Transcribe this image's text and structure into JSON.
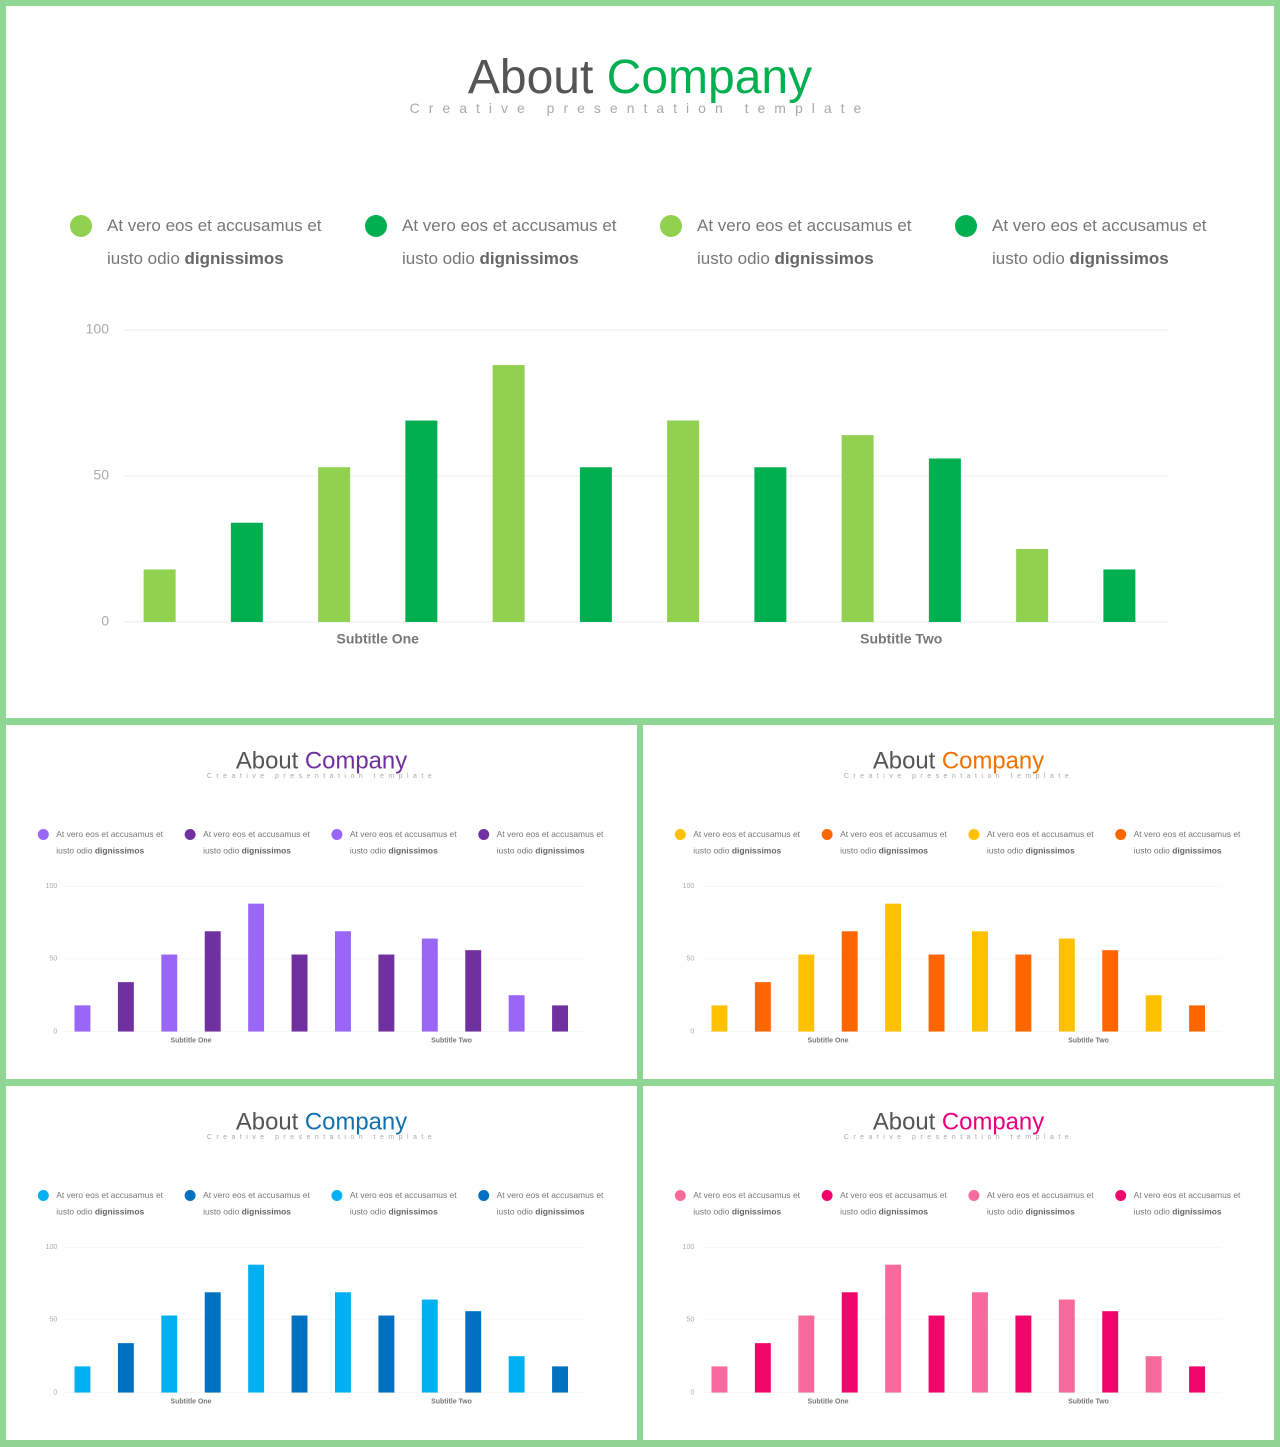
{
  "chart_data": [
    {
      "type": "bar",
      "title": "About",
      "title_accent": "Company",
      "accent_color": "#00b050",
      "subtitle": "Creative presentation template",
      "legend": [
        {
          "text": "At vero eos et accusamus et iusto odio",
          "bold": "dignissimos",
          "color": "#92d050"
        },
        {
          "text": "At vero eos et accusamus et iusto odio",
          "bold": "dignissimos",
          "color": "#00b050"
        },
        {
          "text": "At vero eos et accusamus et iusto odio",
          "bold": "dignissimos",
          "color": "#92d050"
        },
        {
          "text": "At vero eos et accusamus et iusto odio",
          "bold": "dignissimos",
          "color": "#00b050"
        }
      ],
      "categories": [
        "Subtitle One",
        "Subtitle Two"
      ],
      "series": [
        {
          "color": "#92d050",
          "values": [
            18,
            69
          ]
        },
        {
          "color": "#00b050",
          "values": [
            34,
            53
          ]
        },
        {
          "color": "#92d050",
          "values": [
            53,
            64
          ]
        },
        {
          "color": "#00b050",
          "values": [
            69,
            56
          ]
        },
        {
          "color": "#92d050",
          "values": [
            88,
            25
          ]
        },
        {
          "color": "#00b050",
          "values": [
            53,
            18
          ]
        }
      ],
      "ylim": [
        0,
        100
      ],
      "yticks": [
        0,
        50,
        100
      ],
      "grid": true
    },
    {
      "type": "bar",
      "title": "About",
      "title_accent": "Company",
      "accent_color": "#7030a0",
      "subtitle": "Creative presentation template",
      "legend": [
        {
          "text": "At vero eos et accusamus et iusto odio",
          "bold": "dignissimos",
          "color": "#9966f5"
        },
        {
          "text": "At vero eos et accusamus et iusto odio",
          "bold": "dignissimos",
          "color": "#7030a0"
        },
        {
          "text": "At vero eos et accusamus et iusto odio",
          "bold": "dignissimos",
          "color": "#9966f5"
        },
        {
          "text": "At vero eos et accusamus et iusto odio",
          "bold": "dignissimos",
          "color": "#7030a0"
        }
      ],
      "categories": [
        "Subtitle One",
        "Subtitle Two"
      ],
      "series": [
        {
          "color": "#9966f5",
          "values": [
            18,
            69
          ]
        },
        {
          "color": "#7030a0",
          "values": [
            34,
            53
          ]
        },
        {
          "color": "#9966f5",
          "values": [
            53,
            64
          ]
        },
        {
          "color": "#7030a0",
          "values": [
            69,
            56
          ]
        },
        {
          "color": "#9966f5",
          "values": [
            88,
            25
          ]
        },
        {
          "color": "#7030a0",
          "values": [
            53,
            18
          ]
        }
      ],
      "ylim": [
        0,
        100
      ],
      "yticks": [
        0,
        50,
        100
      ],
      "grid": true
    },
    {
      "type": "bar",
      "title": "About",
      "title_accent": "Company",
      "accent_color": "#f07000",
      "subtitle": "Creative presentation template",
      "legend": [
        {
          "text": "At vero eos et accusamus et iusto odio",
          "bold": "dignissimos",
          "color": "#ffc000"
        },
        {
          "text": "At vero eos et accusamus et iusto odio",
          "bold": "dignissimos",
          "color": "#ff6600"
        },
        {
          "text": "At vero eos et accusamus et iusto odio",
          "bold": "dignissimos",
          "color": "#ffc000"
        },
        {
          "text": "At vero eos et accusamus et iusto odio",
          "bold": "dignissimos",
          "color": "#ff6600"
        }
      ],
      "categories": [
        "Subtitle One",
        "Subtitle Two"
      ],
      "series": [
        {
          "color": "#ffc000",
          "values": [
            18,
            69
          ]
        },
        {
          "color": "#ff6600",
          "values": [
            34,
            53
          ]
        },
        {
          "color": "#ffc000",
          "values": [
            53,
            64
          ]
        },
        {
          "color": "#ff6600",
          "values": [
            69,
            56
          ]
        },
        {
          "color": "#ffc000",
          "values": [
            88,
            25
          ]
        },
        {
          "color": "#ff6600",
          "values": [
            53,
            18
          ]
        }
      ],
      "ylim": [
        0,
        100
      ],
      "yticks": [
        0,
        50,
        100
      ],
      "grid": true
    },
    {
      "type": "bar",
      "title": "About",
      "title_accent": "Company",
      "accent_color": "#1070b0",
      "subtitle": "Creative presentation template",
      "legend": [
        {
          "text": "At vero eos et accusamus et iusto odio",
          "bold": "dignissimos",
          "color": "#00b0f0"
        },
        {
          "text": "At vero eos et accusamus et iusto odio",
          "bold": "dignissimos",
          "color": "#0070c0"
        },
        {
          "text": "At vero eos et accusamus et iusto odio",
          "bold": "dignissimos",
          "color": "#00b0f0"
        },
        {
          "text": "At vero eos et accusamus et iusto odio",
          "bold": "dignissimos",
          "color": "#0070c0"
        }
      ],
      "categories": [
        "Subtitle One",
        "Subtitle Two"
      ],
      "series": [
        {
          "color": "#00b0f0",
          "values": [
            18,
            69
          ]
        },
        {
          "color": "#0070c0",
          "values": [
            34,
            53
          ]
        },
        {
          "color": "#00b0f0",
          "values": [
            53,
            64
          ]
        },
        {
          "color": "#0070c0",
          "values": [
            69,
            56
          ]
        },
        {
          "color": "#00b0f0",
          "values": [
            88,
            25
          ]
        },
        {
          "color": "#0070c0",
          "values": [
            53,
            18
          ]
        }
      ],
      "ylim": [
        0,
        100
      ],
      "yticks": [
        0,
        50,
        100
      ],
      "grid": true
    },
    {
      "type": "bar",
      "title": "About",
      "title_accent": "Company",
      "accent_color": "#e6007e",
      "subtitle": "Creative presentation template",
      "legend": [
        {
          "text": "At vero eos et accusamus et iusto odio",
          "bold": "dignissimos",
          "color": "#f76b9c"
        },
        {
          "text": "At vero eos et accusamus et iusto odio",
          "bold": "dignissimos",
          "color": "#f0066b"
        },
        {
          "text": "At vero eos et accusamus et iusto odio",
          "bold": "dignissimos",
          "color": "#f76b9c"
        },
        {
          "text": "At vero eos et accusamus et iusto odio",
          "bold": "dignissimos",
          "color": "#f0066b"
        }
      ],
      "categories": [
        "Subtitle One",
        "Subtitle Two"
      ],
      "series": [
        {
          "color": "#f76b9c",
          "values": [
            18,
            69
          ]
        },
        {
          "color": "#f0066b",
          "values": [
            34,
            53
          ]
        },
        {
          "color": "#f76b9c",
          "values": [
            53,
            64
          ]
        },
        {
          "color": "#f0066b",
          "values": [
            69,
            56
          ]
        },
        {
          "color": "#f76b9c",
          "values": [
            88,
            25
          ]
        },
        {
          "color": "#f0066b",
          "values": [
            53,
            18
          ]
        }
      ],
      "ylim": [
        0,
        100
      ],
      "yticks": [
        0,
        50,
        100
      ],
      "grid": true
    }
  ]
}
